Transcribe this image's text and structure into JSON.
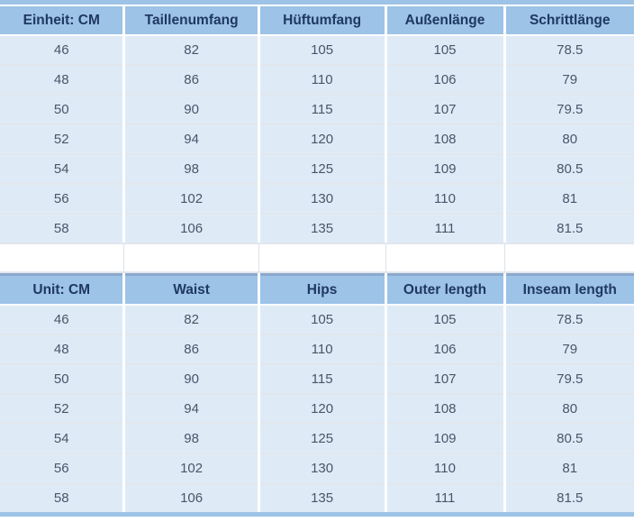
{
  "colors": {
    "header_bg": "#9DC3E6",
    "header_text": "#1F3864",
    "row_bg": "#DEEBF7",
    "cell_text": "#4A5568",
    "band": "#9DC3E6"
  },
  "chart_data": [
    {
      "type": "table",
      "title": "Size chart (German)",
      "headers": [
        "Einheit: CM",
        "Taillenumfang",
        "Hüftumfang",
        "Außenlänge",
        "Schrittlänge"
      ],
      "rows": [
        [
          "46",
          "82",
          "105",
          "105",
          "78.5"
        ],
        [
          "48",
          "86",
          "110",
          "106",
          "79"
        ],
        [
          "50",
          "90",
          "115",
          "107",
          "79.5"
        ],
        [
          "52",
          "94",
          "120",
          "108",
          "80"
        ],
        [
          "54",
          "98",
          "125",
          "109",
          "80.5"
        ],
        [
          "56",
          "102",
          "130",
          "110",
          "81"
        ],
        [
          "58",
          "106",
          "135",
          "111",
          "81.5"
        ]
      ]
    },
    {
      "type": "table",
      "title": "Size chart (English)",
      "headers": [
        "Unit: CM",
        "Waist",
        "Hips",
        "Outer length",
        "Inseam length"
      ],
      "rows": [
        [
          "46",
          "82",
          "105",
          "105",
          "78.5"
        ],
        [
          "48",
          "86",
          "110",
          "106",
          "79"
        ],
        [
          "50",
          "90",
          "115",
          "107",
          "79.5"
        ],
        [
          "52",
          "94",
          "120",
          "108",
          "80"
        ],
        [
          "54",
          "98",
          "125",
          "109",
          "80.5"
        ],
        [
          "56",
          "102",
          "130",
          "110",
          "81"
        ],
        [
          "58",
          "106",
          "135",
          "111",
          "81.5"
        ]
      ]
    }
  ]
}
